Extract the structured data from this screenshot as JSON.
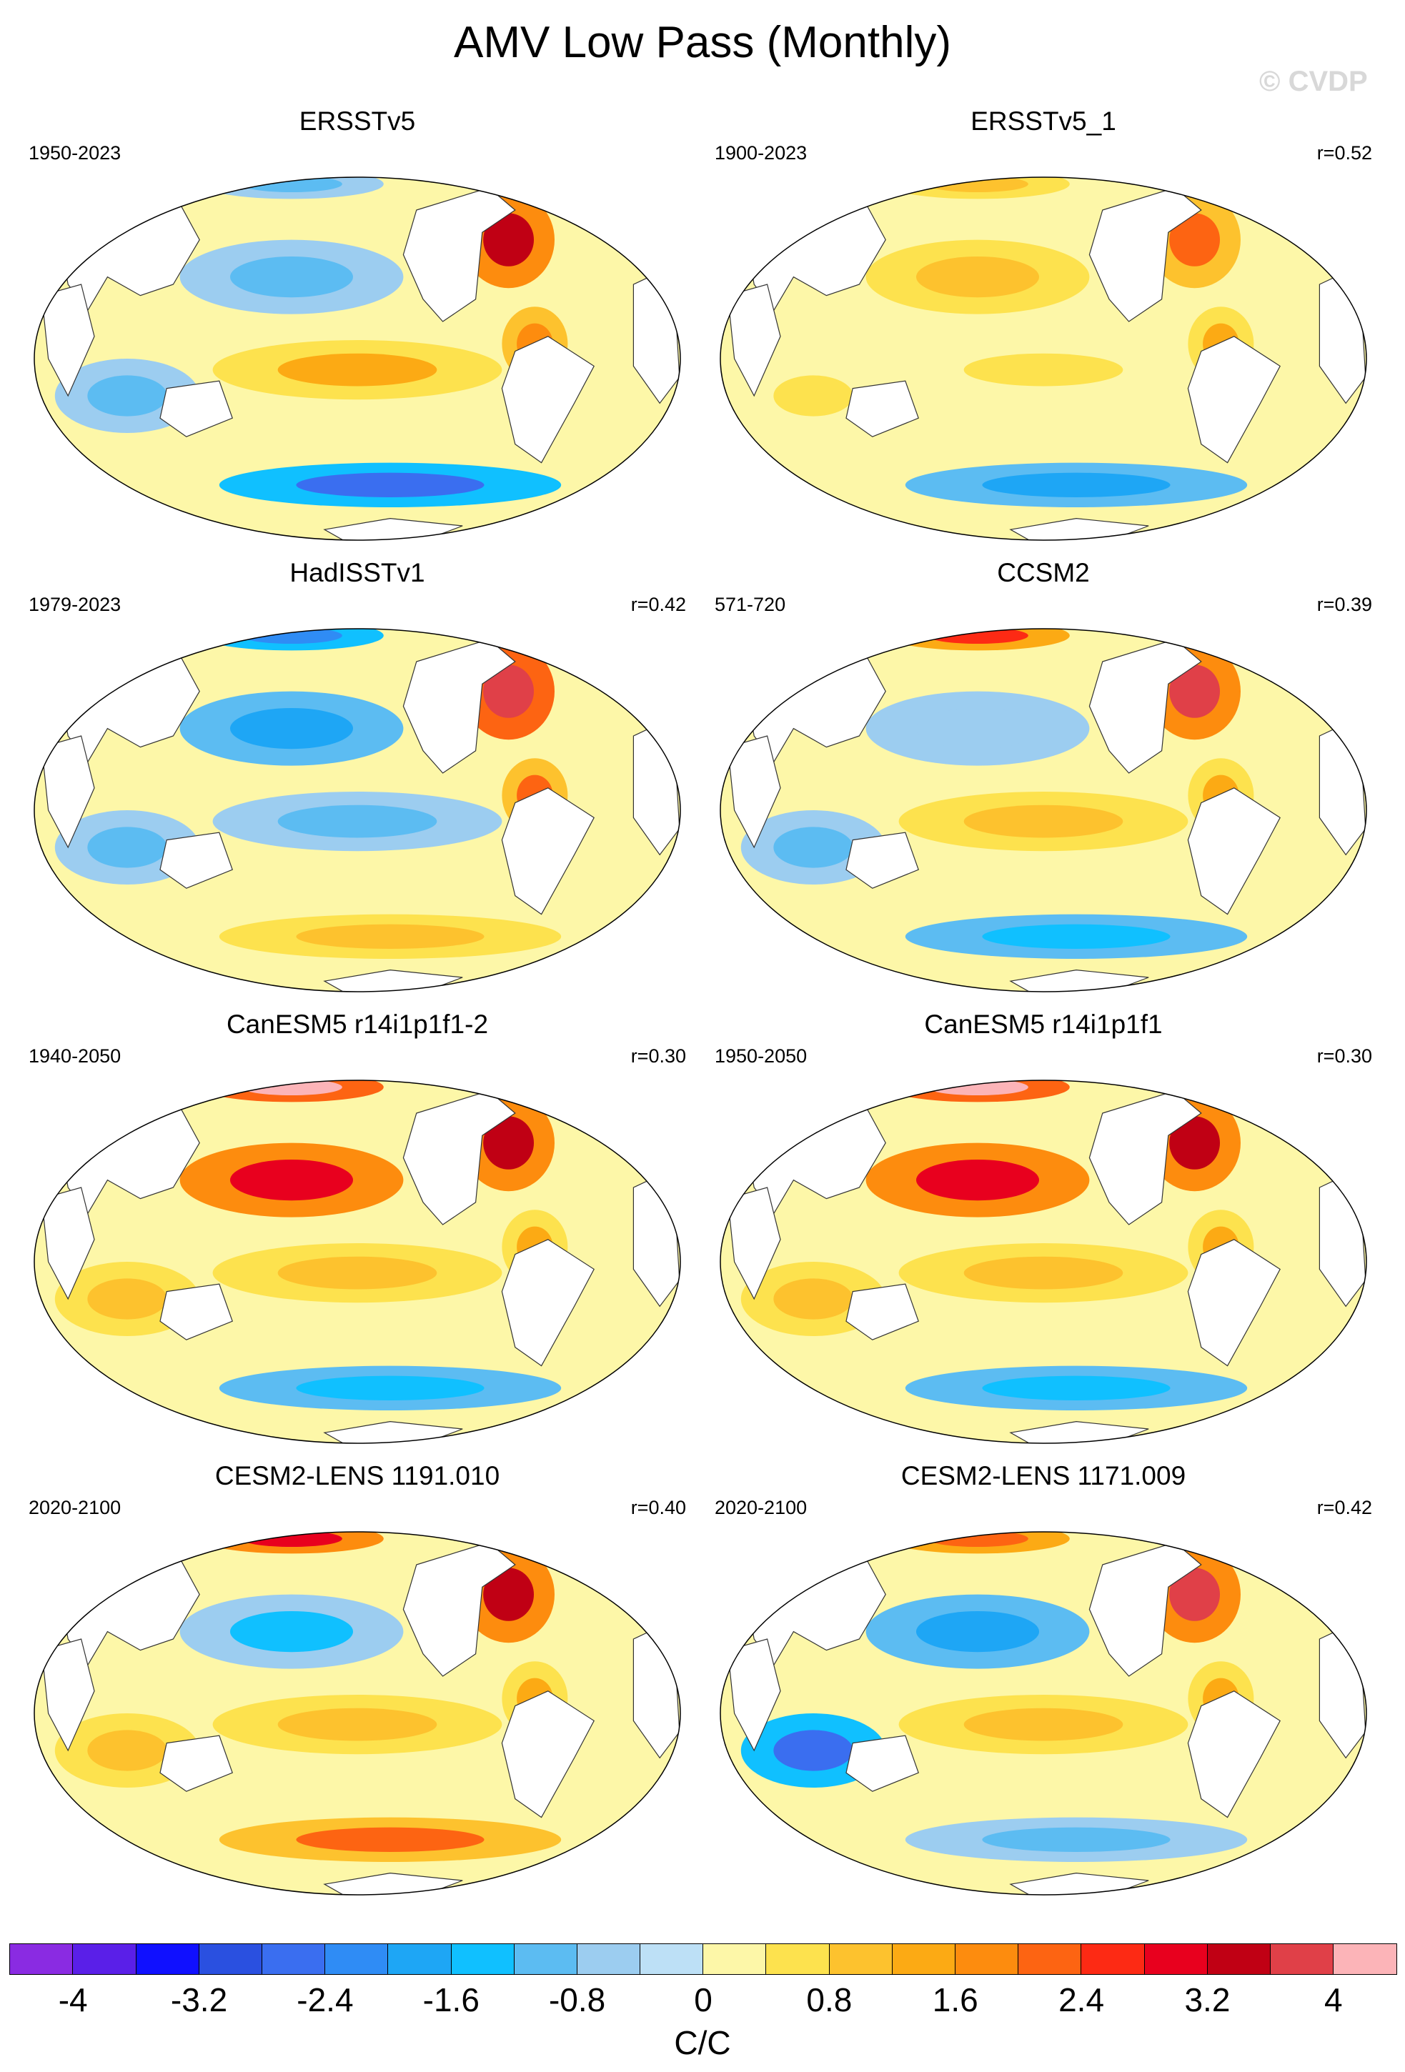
{
  "figure": {
    "title": "AMV Low Pass (Monthly)",
    "watermark": "© CVDP"
  },
  "chart_data": {
    "type": "heatmap",
    "description": "Global SST anomaly maps (Robinson projection) for the AMV low-pass regression, 8 panels",
    "colorbar": {
      "units": "C/C",
      "levels": [
        -4.4,
        -4,
        -3.6,
        -3.2,
        -2.8,
        -2.4,
        -2,
        -1.6,
        -1.2,
        -0.8,
        -0.4,
        0,
        0.4,
        0.8,
        1.2,
        1.6,
        2,
        2.4,
        2.8,
        3.2,
        3.6,
        4,
        4.4
      ],
      "tick_labels": [
        "-4",
        "-3.2",
        "-2.4",
        "-1.6",
        "-0.8",
        "0",
        "0.8",
        "1.6",
        "2.4",
        "3.2",
        "4"
      ],
      "tick_values": [
        -4,
        -3.2,
        -2.4,
        -1.6,
        -0.8,
        0,
        0.8,
        1.6,
        2.4,
        3.2,
        4
      ],
      "colors": [
        "#8a2be2",
        "#5a1fe8",
        "#1010ff",
        "#2a50e0",
        "#3a6ef0",
        "#2f8cf5",
        "#1ea6f5",
        "#10c0ff",
        "#5cbcf2",
        "#9ccdf0",
        "#bde0f6",
        "#fdf7a8",
        "#fde24e",
        "#fdc22e",
        "#fcaa14",
        "#fd8c0e",
        "#fd6412",
        "#fd2a14",
        "#e8001e",
        "#c00014",
        "#e04048",
        "#fcb4b8"
      ]
    },
    "panels": [
      {
        "name": "ERSSTv5",
        "period": "1950-2023",
        "r": null,
        "pattern": {
          "north_atlantic": 3.4,
          "tropical_atlantic": 1.6,
          "north_pacific": -1.2,
          "tropical_pacific": 1.4,
          "southern_ocean": -2.6,
          "indian_ocean": -1.2,
          "arctic": -1.0
        }
      },
      {
        "name": "ERSSTv5_1",
        "period": "1900-2023",
        "r": "r=0.52",
        "pattern": {
          "north_atlantic": 2.0,
          "tropical_atlantic": 1.2,
          "north_pacific": 0.8,
          "tropical_pacific": 0.6,
          "southern_ocean": -2.0,
          "indian_ocean": 0.6,
          "arctic": 1.0
        }
      },
      {
        "name": "HadISSTv1",
        "period": "1979-2023",
        "r": "r=0.42",
        "pattern": {
          "north_atlantic": 3.8,
          "tropical_atlantic": 2.0,
          "north_pacific": -2.0,
          "tropical_pacific": -1.2,
          "southern_ocean": 0.8,
          "indian_ocean": -1.0,
          "arctic": -2.4
        }
      },
      {
        "name": "CCSM2",
        "period": "571-720",
        "r": "r=0.39",
        "pattern": {
          "north_atlantic": 3.6,
          "tropical_atlantic": 1.2,
          "north_pacific": -0.8,
          "tropical_pacific": 0.8,
          "southern_ocean": -1.6,
          "indian_ocean": -1.0,
          "arctic": 2.6
        }
      },
      {
        "name": "CanESM5 r14i1p1f1-2",
        "period": "1940-2050",
        "r": "r=0.30",
        "pattern": {
          "north_atlantic": 3.2,
          "tropical_atlantic": 1.4,
          "north_pacific": 3.0,
          "tropical_pacific": 0.8,
          "southern_ocean": -1.6,
          "indian_ocean": 1.0,
          "arctic": 4.2
        }
      },
      {
        "name": "CanESM5 r14i1p1f1",
        "period": "1950-2050",
        "r": "r=0.30",
        "pattern": {
          "north_atlantic": 3.2,
          "tropical_atlantic": 1.4,
          "north_pacific": 3.0,
          "tropical_pacific": 0.8,
          "southern_ocean": -1.6,
          "indian_ocean": 1.0,
          "arctic": 4.2
        }
      },
      {
        "name": "CESM2-LENS 1191.010",
        "period": "2020-2100",
        "r": "r=0.40",
        "pattern": {
          "north_atlantic": 3.4,
          "tropical_atlantic": 1.2,
          "north_pacific": -1.4,
          "tropical_pacific": 0.8,
          "southern_ocean": 2.0,
          "indian_ocean": 0.8,
          "arctic": 3.0
        }
      },
      {
        "name": "CESM2-LENS 1171.009",
        "period": "2020-2100",
        "r": "r=0.42",
        "pattern": {
          "north_atlantic": 3.6,
          "tropical_atlantic": 1.4,
          "north_pacific": -2.0,
          "tropical_pacific": 1.0,
          "southern_ocean": -1.2,
          "indian_ocean": -2.8,
          "arctic": 2.2
        }
      }
    ]
  }
}
